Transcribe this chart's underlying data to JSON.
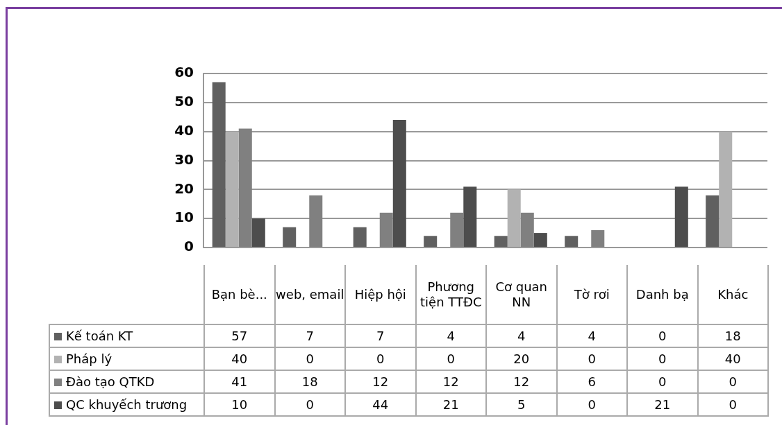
{
  "chart_data": {
    "type": "bar",
    "categories": [
      "Bạn bè...",
      "web, email",
      "Hiệp hội",
      "Phương tiện TTĐC",
      "Cơ quan NN",
      "Tờ rơi",
      "Danh bạ",
      "Khác"
    ],
    "series": [
      {
        "name": "Kế toán KT",
        "color": "#606060",
        "values": [
          57,
          7,
          7,
          4,
          4,
          4,
          0,
          18
        ]
      },
      {
        "name": "Pháp lý",
        "color": "#b2b2b2",
        "values": [
          40,
          0,
          0,
          0,
          20,
          0,
          0,
          40
        ]
      },
      {
        "name": "Đào tạo QTKD",
        "color": "#808080",
        "values": [
          41,
          18,
          12,
          12,
          12,
          6,
          0,
          0
        ]
      },
      {
        "name": "QC khuyếch trương",
        "color": "#4d4d4d",
        "values": [
          10,
          0,
          44,
          21,
          5,
          0,
          21,
          0
        ]
      }
    ],
    "ylim": [
      0,
      60
    ],
    "yticks": [
      0,
      10,
      20,
      30,
      40,
      50,
      60
    ],
    "grid": "y",
    "legend": "bottom left",
    "data_labels": true
  }
}
